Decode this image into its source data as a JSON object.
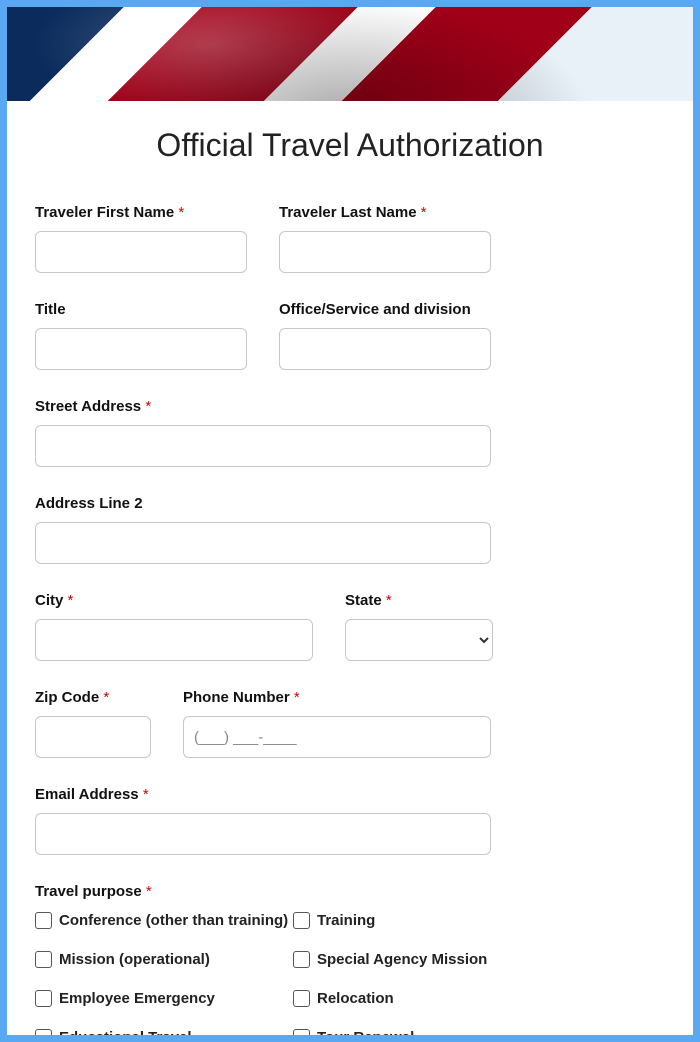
{
  "title": "Official Travel Authorization",
  "fields": {
    "firstName": {
      "label": "Traveler First Name",
      "required": true
    },
    "lastName": {
      "label": "Traveler Last Name",
      "required": true
    },
    "personTitle": {
      "label": "Title",
      "required": false
    },
    "office": {
      "label": "Office/Service and division",
      "required": false
    },
    "street": {
      "label": "Street Address",
      "required": true
    },
    "address2": {
      "label": "Address Line 2",
      "required": false
    },
    "city": {
      "label": "City",
      "required": true
    },
    "state": {
      "label": "State",
      "required": true
    },
    "zip": {
      "label": "Zip Code",
      "required": true
    },
    "phone": {
      "label": "Phone Number",
      "required": true,
      "placeholder": "(___) ___-____"
    },
    "email": {
      "label": "Email Address",
      "required": true
    }
  },
  "travelPurpose": {
    "label": "Travel purpose",
    "required": true,
    "options": [
      "Conference (other than training)",
      "Training",
      "Mission (operational)",
      "Special Agency Mission",
      "Employee Emergency",
      "Relocation",
      "Educational Travel",
      "Tour Renewal"
    ]
  },
  "colors": {
    "border": "#5aa7f2",
    "required": "#d40000",
    "inputBorder": "#c7c7c7",
    "text": "#111111"
  }
}
